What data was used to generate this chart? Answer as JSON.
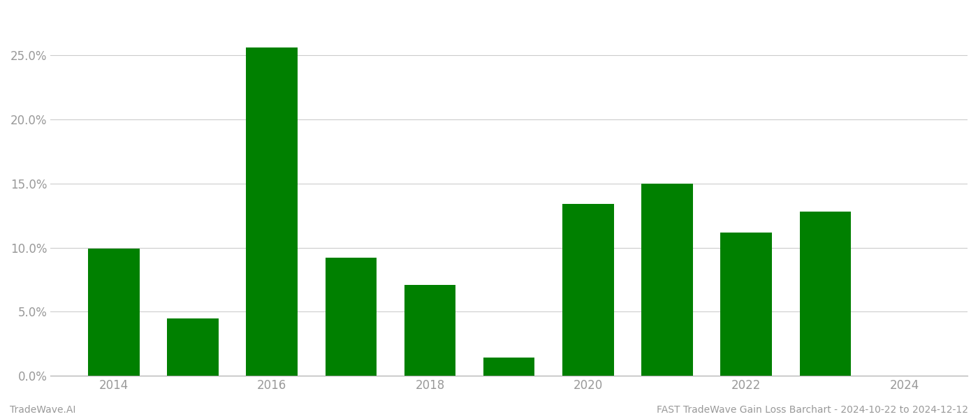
{
  "years": [
    2014,
    2015,
    2016,
    2017,
    2018,
    2019,
    2020,
    2021,
    2022,
    2023
  ],
  "values": [
    0.099,
    0.045,
    0.256,
    0.092,
    0.071,
    0.014,
    0.134,
    0.15,
    0.112,
    0.128
  ],
  "bar_color": "#008000",
  "background_color": "#ffffff",
  "grid_color": "#cccccc",
  "axis_color": "#aaaaaa",
  "tick_label_color": "#999999",
  "ylim": [
    0,
    0.285
  ],
  "yticks": [
    0.0,
    0.05,
    0.1,
    0.15,
    0.2,
    0.25
  ],
  "xtick_labels": [
    "2014",
    "",
    "2016",
    "",
    "2018",
    "",
    "2020",
    "",
    "2022",
    "",
    "2024"
  ],
  "footer_left": "TradeWave.AI",
  "footer_right": "FAST TradeWave Gain Loss Barchart - 2024-10-22 to 2024-12-12",
  "footer_color": "#999999",
  "footer_fontsize": 10,
  "bar_width": 0.65,
  "figsize": [
    14.0,
    6.0
  ],
  "dpi": 100
}
